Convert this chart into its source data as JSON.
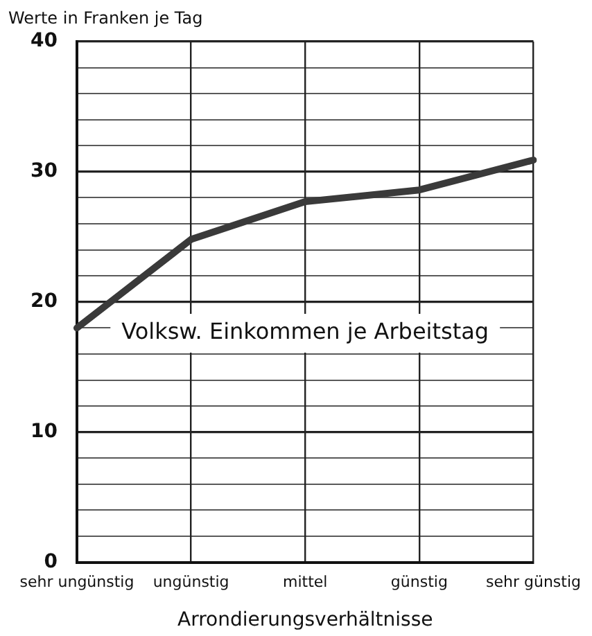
{
  "chart_data": {
    "type": "line",
    "ylabel": "Werte in Franken je Tag",
    "xlabel": "Arrondierungsverhältnisse",
    "categories": [
      "sehr ungünstig",
      "ungünstig",
      "mittel",
      "günstig",
      "sehr günstig"
    ],
    "series": [
      {
        "name": "Volksw. Einkommen je Arbeitstag",
        "color": "#3a3a3a",
        "values": [
          18,
          24.8,
          27.7,
          28.6,
          30.9
        ]
      }
    ],
    "ylim": [
      0,
      40
    ],
    "yticks": [
      0,
      {
        "value": 2,
        "label": null
      },
      {
        "value": 4,
        "label": null
      },
      {
        "value": 6,
        "label": null
      },
      {
        "value": 8,
        "label": null
      },
      10,
      {
        "value": 12,
        "label": null
      },
      {
        "value": 14,
        "label": null
      },
      {
        "value": 16,
        "label": null
      },
      {
        "value": 18,
        "label": null
      },
      20,
      {
        "value": 22,
        "label": null
      },
      {
        "value": 24,
        "label": null
      },
      {
        "value": 26,
        "label": null
      },
      {
        "value": 28,
        "label": null
      },
      30,
      {
        "value": 32,
        "label": null
      },
      {
        "value": 34,
        "label": null
      },
      {
        "value": 36,
        "label": null
      },
      {
        "value": 38,
        "label": null
      },
      40
    ],
    "grid": true,
    "legend": false,
    "marker": "none",
    "line_style": "solid"
  }
}
